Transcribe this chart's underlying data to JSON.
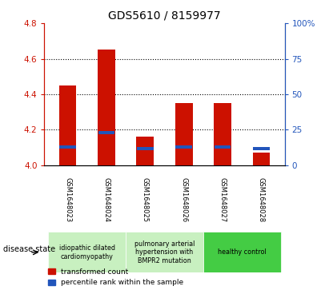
{
  "title": "GDS5610 / 8159977",
  "samples": [
    "GSM1648023",
    "GSM1648024",
    "GSM1648025",
    "GSM1648026",
    "GSM1648027",
    "GSM1648028"
  ],
  "red_values": [
    4.45,
    4.65,
    4.16,
    4.35,
    4.35,
    4.07
  ],
  "blue_values": [
    4.105,
    4.185,
    4.092,
    4.103,
    4.103,
    4.092
  ],
  "ylim_left": [
    4.0,
    4.8
  ],
  "ylim_right": [
    0,
    100
  ],
  "yticks_left": [
    4.0,
    4.2,
    4.4,
    4.6,
    4.8
  ],
  "yticks_right": [
    0,
    25,
    50,
    75,
    100
  ],
  "ytick_labels_right": [
    "0",
    "25",
    "50",
    "75",
    "100%"
  ],
  "bar_color": "#cc1100",
  "marker_color": "#2255bb",
  "bar_width": 0.45,
  "legend_red": "transformed count",
  "legend_blue": "percentile rank within the sample",
  "title_fontsize": 10,
  "tick_fontsize": 7.5,
  "sample_label_fontsize": 6,
  "disease_groups": [
    {
      "indices": [
        0,
        1
      ],
      "label": "idiopathic dilated\ncardiomyopathy",
      "color": "#c8f0c0"
    },
    {
      "indices": [
        2,
        3
      ],
      "label": "pulmonary arterial\nhypertension with\nBMPR2 mutation",
      "color": "#c8f0c0"
    },
    {
      "indices": [
        4,
        5
      ],
      "label": "healthy control",
      "color": "#44cc44"
    }
  ],
  "sample_bg_color": "#c8c8c8"
}
